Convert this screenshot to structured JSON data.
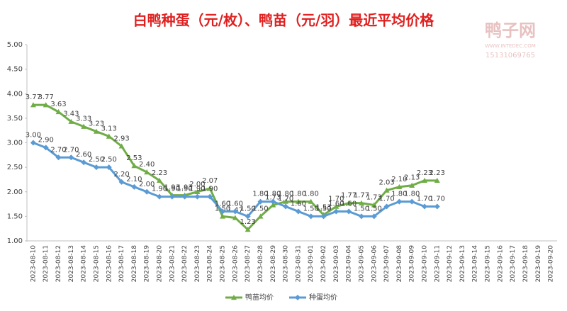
{
  "chart_data": {
    "type": "line",
    "title": "白鸭种蛋（元/枚）、鸭苗（元/羽）最近平均价格",
    "watermark": [
      "鸭子网",
      "WWW.INTEDEC.COM",
      "15131069765"
    ],
    "categories": [
      "2023-08-10",
      "2023-08-11",
      "2023-08-12",
      "2023-08-13",
      "2023-08-14",
      "2023-08-15",
      "2023-08-16",
      "2023-08-17",
      "2023-08-18",
      "2023-08-19",
      "2023-08-20",
      "2023-08-21",
      "2023-08-22",
      "2023-08-23",
      "2023-08-24",
      "2023-08-25",
      "2023-08-26",
      "2023-08-27",
      "2023-08-28",
      "2023-08-29",
      "2023-08-30",
      "2023-08-31",
      "2023-09-01",
      "2023-09-02",
      "2023-09-03",
      "2023-09-04",
      "2023-09-05",
      "2023-09-06",
      "2023-09-07",
      "2023-09-08",
      "2023-09-09",
      "2023-09-10",
      "2023-09-11",
      "2023-09-12",
      "2023-09-13",
      "2023-09-14",
      "2023-09-15",
      "2023-09-16",
      "2023-09-17",
      "2023-09-18",
      "2023-09-19",
      "2023-09-20"
    ],
    "series": [
      {
        "name": "鸭苗均价",
        "color": "#70ad47",
        "marker": "triangle",
        "values": [
          3.77,
          3.77,
          3.63,
          3.43,
          3.33,
          3.23,
          3.13,
          2.93,
          2.53,
          2.4,
          2.23,
          1.93,
          1.93,
          2.0,
          2.07,
          1.5,
          1.47,
          1.23,
          1.5,
          1.73,
          1.8,
          1.8,
          1.8,
          1.53,
          1.7,
          1.77,
          1.77,
          1.73,
          2.03,
          2.1,
          2.13,
          2.23,
          2.23,
          null,
          null,
          null,
          null,
          null,
          null,
          null,
          null,
          null
        ],
        "value_labels": [
          "3.77",
          "3.77",
          "3.63",
          "3.43",
          "3.33",
          "3.23",
          "3.13",
          "2.93",
          "2.53",
          "2.40",
          "2.23",
          "1.93",
          "1.93",
          "2.00",
          "2.07",
          "1.50",
          "1.47",
          "1.23",
          "1.50",
          "1.73",
          "1.80",
          "1.80",
          "1.80",
          "1.53",
          "1.70",
          "1.77",
          "1.77",
          "1.73",
          "2.03",
          "2.10",
          "2.13",
          "2.23",
          "2.23",
          null,
          null,
          null,
          null,
          null,
          null,
          null,
          null,
          null
        ]
      },
      {
        "name": "种蛋均价",
        "color": "#5b9bd5",
        "marker": "diamond",
        "values": [
          3.0,
          2.9,
          2.7,
          2.7,
          2.6,
          2.5,
          2.5,
          2.2,
          2.1,
          2.0,
          1.9,
          1.9,
          1.9,
          1.9,
          1.9,
          1.6,
          1.6,
          1.5,
          1.8,
          1.8,
          1.7,
          1.6,
          1.5,
          1.5,
          1.6,
          1.6,
          1.5,
          1.5,
          1.7,
          1.8,
          1.8,
          1.7,
          1.7,
          null,
          null,
          null,
          null,
          null,
          null,
          null,
          null,
          null
        ],
        "value_labels": [
          "3.00",
          "2.90",
          "2.70",
          "2.70",
          "2.60",
          "2.50",
          "2.50",
          "2.20",
          "2.10",
          "2.00",
          "1.90",
          "1.90",
          "1.90",
          "1.90",
          "1.90",
          "1.60",
          "1.60",
          "1.50",
          "1.80",
          "1.80",
          "1.70",
          "1.60",
          "1.50",
          "1.50",
          "1.60",
          "1.60",
          "1.50",
          "1.50",
          "1.70",
          "1.80",
          "1.80",
          "1.70",
          "1.70",
          null,
          null,
          null,
          null,
          null,
          null,
          null,
          null,
          null
        ]
      }
    ],
    "ylim": [
      1,
      5
    ],
    "yticks": [
      {
        "value": 1,
        "label": "1.00"
      },
      {
        "value": 1.5,
        "label": "1.50"
      },
      {
        "value": 2,
        "label": "2.00"
      },
      {
        "value": 2.5,
        "label": "2.50"
      },
      {
        "value": 3,
        "label": "3.00"
      },
      {
        "value": 3.5,
        "label": "3.50"
      },
      {
        "value": 4,
        "label": "4.00"
      },
      {
        "value": 4.5,
        "label": "4.50"
      },
      {
        "value": 5,
        "label": "5.00"
      }
    ],
    "grid": false,
    "legend": "bottom"
  }
}
